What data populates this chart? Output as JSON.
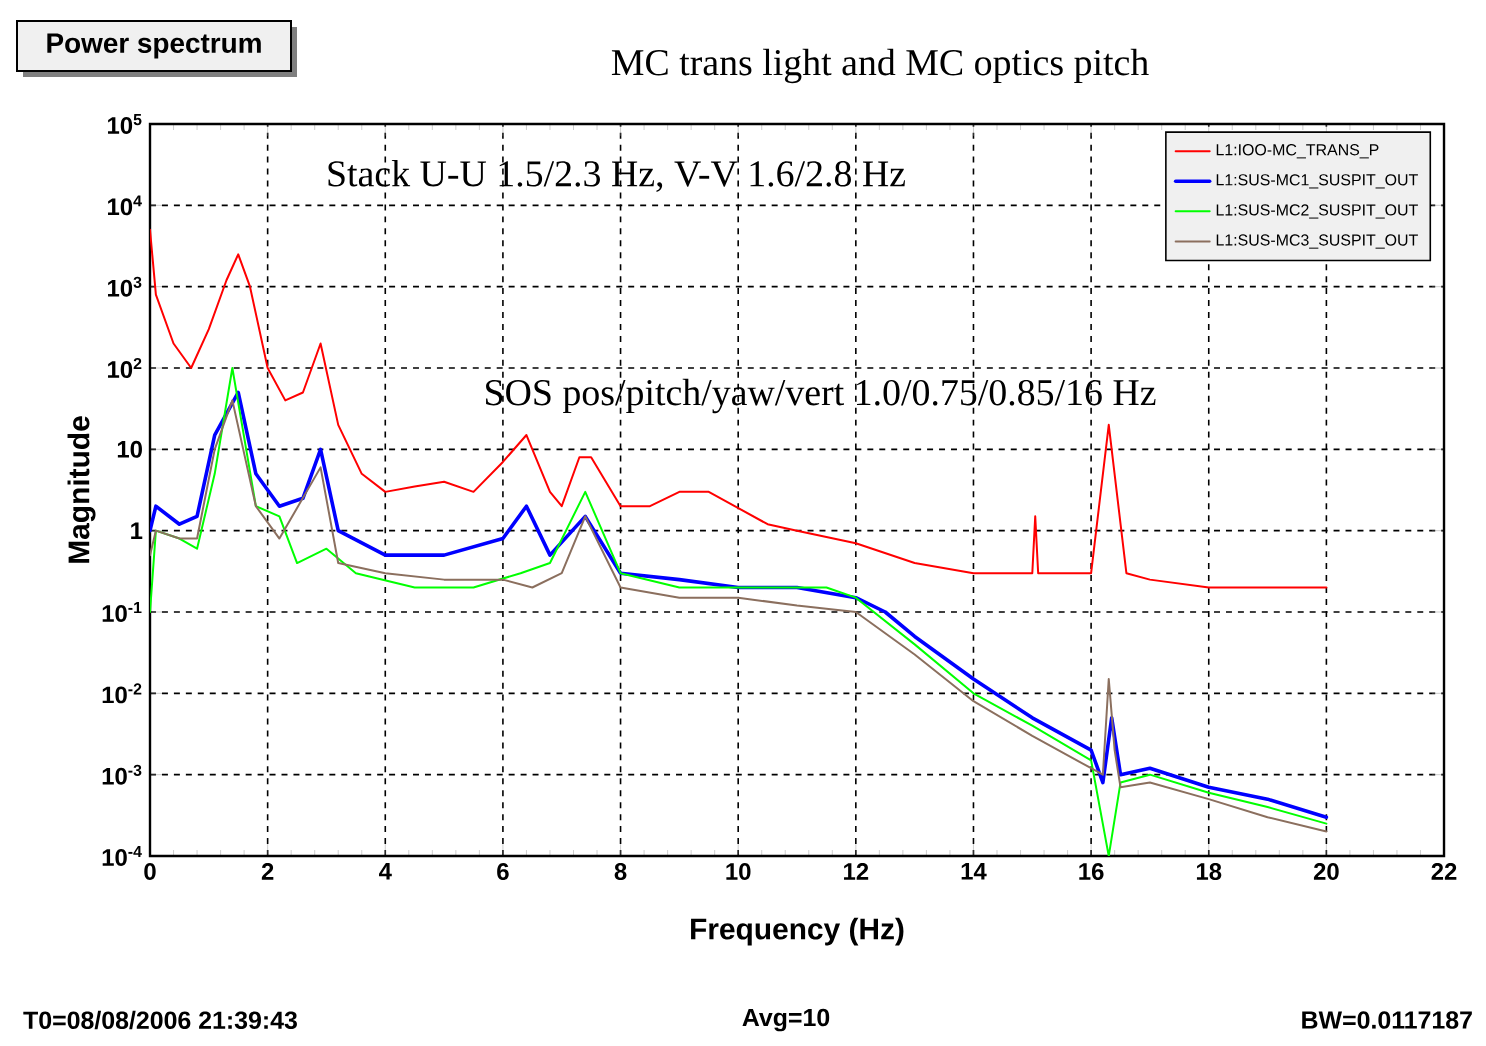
{
  "chart_data": {
    "type": "line",
    "title": "MC trans light and MC optics pitch",
    "xlabel": "Frequency (Hz)",
    "ylabel": "Magnitude",
    "annotations": [
      "Power spectrum",
      "Stack U-U 1.5/2.3 Hz, V-V 1.6/2.8 Hz",
      "SOS pos/pitch/yaw/vert 1.0/0.75/0.85/16 Hz",
      "T0=08/08/2006 21:39:43",
      "Avg=10",
      "BW=0.0117187"
    ],
    "log": "y",
    "grid": true,
    "legend": "top right",
    "marker": "none",
    "line_style": "solid",
    "xlim": [
      0,
      22
    ],
    "xticks": [
      0,
      2,
      4,
      6,
      8,
      10,
      12,
      14,
      16,
      18,
      20,
      22
    ],
    "ylim": [
      0.0001,
      100000
    ],
    "yticks": [
      {
        "value": 0.0001,
        "label": "10$^{-4}$"
      },
      {
        "value": 0.001,
        "label": "10$^{-3}$"
      },
      {
        "value": 0.01,
        "label": "10$^{-2}$"
      },
      {
        "value": 0.1,
        "label": "10$^{-1}$"
      },
      1,
      10,
      {
        "value": 100,
        "label": "10$^{2}$"
      },
      {
        "value": 1000,
        "label": "10$^{3}$"
      },
      {
        "value": 10000,
        "label": "10$^{4}$"
      },
      {
        "value": 100000,
        "label": "10$^{5}$"
      }
    ],
    "series": [
      {
        "name": "L1:IOO-MC_TRANS_P",
        "color": "#ff0000",
        "x": [
          0,
          0.05,
          0.1,
          0.4,
          0.7,
          1.0,
          1.3,
          1.5,
          1.7,
          2.0,
          2.3,
          2.6,
          2.9,
          3.2,
          3.6,
          4.0,
          4.5,
          5.0,
          5.5,
          6.0,
          6.4,
          6.8,
          7.0,
          7.3,
          7.5,
          8.0,
          8.5,
          9.0,
          9.5,
          10.5,
          11,
          12,
          13,
          14,
          15,
          15.05,
          15.1,
          15.5,
          16,
          16.3,
          16.6,
          17,
          18,
          19,
          20
        ],
        "values": [
          5000,
          2000,
          800,
          200,
          100,
          300,
          1200,
          2500,
          1000,
          100,
          40,
          50,
          200,
          20,
          5,
          3,
          3.5,
          4,
          3,
          7,
          15,
          3,
          2,
          8,
          8,
          2,
          2,
          3,
          3,
          1.2,
          1,
          0.7,
          0.4,
          0.3,
          0.3,
          1.5,
          0.3,
          0.3,
          0.3,
          20,
          0.3,
          0.25,
          0.2,
          0.2,
          0.2
        ]
      },
      {
        "name": "L1:SUS-MC1_SUSPIT_OUT",
        "color": "#0000ff",
        "x": [
          0,
          0.1,
          0.5,
          0.8,
          1.1,
          1.5,
          1.8,
          2.2,
          2.6,
          2.9,
          3.2,
          4,
          5,
          6,
          6.4,
          6.8,
          7.4,
          8,
          9,
          10,
          11,
          12,
          12.5,
          13,
          14,
          15,
          16,
          16.2,
          16.35,
          16.5,
          17,
          18,
          19,
          20
        ],
        "values": [
          1,
          2,
          1.2,
          1.5,
          15,
          50,
          5,
          2,
          2.5,
          10,
          1,
          0.5,
          0.5,
          0.8,
          2,
          0.5,
          1.5,
          0.3,
          0.25,
          0.2,
          0.2,
          0.15,
          0.1,
          0.05,
          0.015,
          0.005,
          0.002,
          0.0008,
          0.005,
          0.001,
          0.0012,
          0.0007,
          0.0005,
          0.0003
        ]
      },
      {
        "name": "L1:SUS-MC2_SUSPIT_OUT",
        "color": "#00ff00",
        "x": [
          0,
          0.1,
          0.5,
          0.8,
          1.1,
          1.4,
          1.8,
          2.2,
          2.5,
          3,
          3.5,
          4.5,
          5.5,
          6.3,
          6.8,
          7.4,
          8,
          9,
          10,
          11.5,
          12,
          13,
          14,
          15,
          16,
          16.3,
          16.5,
          17,
          18,
          19,
          20
        ],
        "values": [
          0.1,
          1,
          0.8,
          0.6,
          5,
          100,
          2,
          1.5,
          0.4,
          0.6,
          0.3,
          0.2,
          0.2,
          0.3,
          0.4,
          3,
          0.3,
          0.2,
          0.2,
          0.2,
          0.15,
          0.04,
          0.01,
          0.004,
          0.0015,
          0.0001,
          0.0008,
          0.001,
          0.0006,
          0.0004,
          0.00025
        ]
      },
      {
        "name": "L1:SUS-MC3_SUSPIT_OUT",
        "color": "#8b6f5e",
        "x": [
          0,
          0.1,
          0.5,
          0.8,
          1.1,
          1.4,
          1.8,
          2.2,
          2.9,
          3.2,
          4,
          5,
          6,
          6.5,
          7,
          7.4,
          8,
          9,
          10,
          11,
          12,
          13,
          14,
          15,
          16,
          16.2,
          16.3,
          16.4,
          16.5,
          17,
          18,
          19,
          20
        ],
        "values": [
          0.5,
          1,
          0.8,
          0.8,
          10,
          40,
          2,
          0.8,
          6,
          0.4,
          0.3,
          0.25,
          0.25,
          0.2,
          0.3,
          1.5,
          0.2,
          0.15,
          0.15,
          0.12,
          0.1,
          0.03,
          0.008,
          0.003,
          0.0012,
          0.001,
          0.015,
          0.002,
          0.0007,
          0.0008,
          0.0005,
          0.0003,
          0.0002
        ]
      }
    ]
  }
}
